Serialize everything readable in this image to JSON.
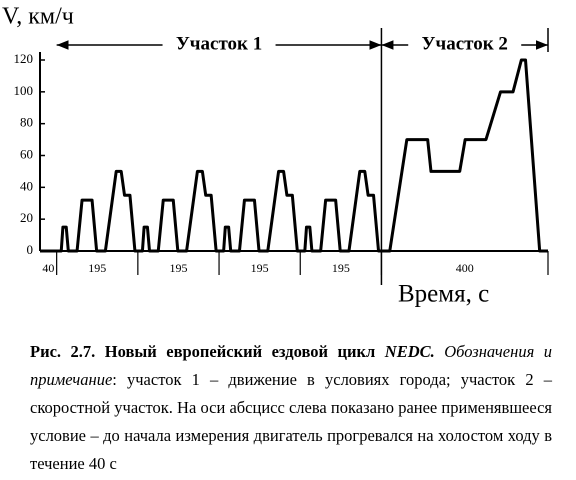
{
  "chart_data": {
    "type": "line",
    "y_label": "V, км/ч",
    "x_label": "Время, с",
    "x": [
      0,
      40,
      51,
      55,
      63,
      68,
      89,
      101,
      125,
      136,
      157,
      183,
      195,
      203,
      216,
      228,
      235,
      246,
      250,
      258,
      263,
      284,
      296,
      320,
      331,
      352,
      378,
      390,
      398,
      411,
      423,
      430,
      441,
      445,
      453,
      458,
      479,
      491,
      515,
      526,
      547,
      573,
      585,
      593,
      606,
      618,
      625,
      636,
      640,
      648,
      653,
      674,
      686,
      710,
      721,
      742,
      768,
      780,
      788,
      801,
      813,
      820,
      840,
      881,
      931,
      939,
      1008,
      1021,
      1071,
      1106,
      1136,
      1156,
      1166,
      1200,
      1220
    ],
    "values": [
      0,
      0,
      0,
      15,
      15,
      0,
      0,
      32,
      32,
      0,
      0,
      50,
      50,
      35,
      35,
      0,
      0,
      0,
      15,
      15,
      0,
      0,
      32,
      32,
      0,
      0,
      50,
      50,
      35,
      35,
      0,
      0,
      0,
      15,
      15,
      0,
      0,
      32,
      32,
      0,
      0,
      50,
      50,
      35,
      35,
      0,
      0,
      0,
      15,
      15,
      0,
      0,
      32,
      32,
      0,
      0,
      50,
      50,
      35,
      35,
      0,
      0,
      0,
      70,
      70,
      50,
      50,
      70,
      70,
      100,
      100,
      120,
      120,
      0,
      0
    ],
    "color": "#000000",
    "xlim": [
      0,
      1220
    ],
    "ylim": [
      0,
      120
    ],
    "yticks": [
      0,
      20,
      40,
      60,
      80,
      100,
      120
    ],
    "x_segments": [
      40,
      195,
      195,
      195,
      195,
      400
    ],
    "sections": [
      {
        "label": "Участок 1",
        "x": [
          40,
          820
        ]
      },
      {
        "label": "Участок 2",
        "x": [
          820,
          1220
        ]
      }
    ]
  },
  "caption": [
    "Рис. 2.7. Новый европейский ездовой цикл ",
    "NEDC.",
    " Обозначения и примечание",
    ": участок 1 – движение в условиях города; участок 2 – скоростной участок. На оси абсцисс слева показано ранее применявшееся условие – до начала измерения двигатель прогревался на холостом ходу в течение 40 с"
  ]
}
